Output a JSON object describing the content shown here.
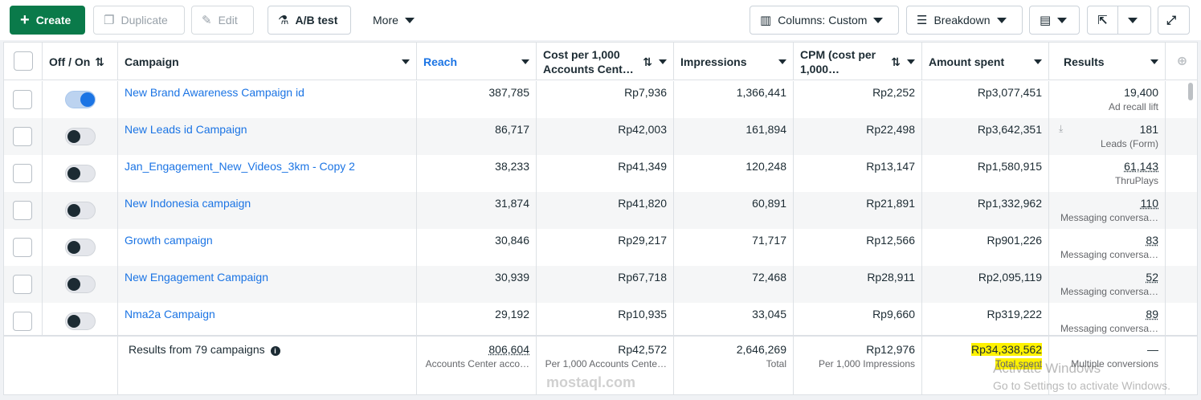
{
  "toolbar": {
    "create": "Create",
    "duplicate": "Duplicate",
    "edit": "Edit",
    "ab_test": "A/B test",
    "more": "More",
    "columns": "Columns: Custom",
    "breakdown": "Breakdown"
  },
  "headers": {
    "off_on": "Off / On",
    "campaign": "Campaign",
    "reach": "Reach",
    "cost_per_1000": "Cost per 1,000 Accounts Cent…",
    "impressions": "Impressions",
    "cpm": "CPM (cost per 1,000…",
    "amount_spent": "Amount spent",
    "results": "Results"
  },
  "rows": [
    {
      "name": "New Brand Awareness Campaign id",
      "reach": "387,785",
      "cost": "Rp7,936",
      "impressions": "1,366,441",
      "cpm": "Rp2,252",
      "spent": "Rp3,077,451",
      "result": "19,400",
      "result_type": "Ad recall lift",
      "on": true
    },
    {
      "name": "New Leads id Campaign",
      "reach": "86,717",
      "cost": "Rp42,003",
      "impressions": "161,894",
      "cpm": "Rp22,498",
      "spent": "Rp3,642,351",
      "result": "181",
      "result_type": "Leads (Form)",
      "on": false
    },
    {
      "name": "Jan_Engagement_New_Videos_3km - Copy 2",
      "reach": "38,233",
      "cost": "Rp41,349",
      "impressions": "120,248",
      "cpm": "Rp13,147",
      "spent": "Rp1,580,915",
      "result": "61,143",
      "result_type": "ThruPlays",
      "on": false
    },
    {
      "name": "New Indonesia campaign",
      "reach": "31,874",
      "cost": "Rp41,820",
      "impressions": "60,891",
      "cpm": "Rp21,891",
      "spent": "Rp1,332,962",
      "result": "110",
      "result_type": "Messaging conversa…",
      "on": false
    },
    {
      "name": "Growth campaign",
      "reach": "30,846",
      "cost": "Rp29,217",
      "impressions": "71,717",
      "cpm": "Rp12,566",
      "spent": "Rp901,226",
      "result": "83",
      "result_type": "Messaging conversa…",
      "on": false
    },
    {
      "name": "New Engagement Campaign",
      "reach": "30,939",
      "cost": "Rp67,718",
      "impressions": "72,468",
      "cpm": "Rp28,911",
      "spent": "Rp2,095,119",
      "result": "52",
      "result_type": "Messaging conversa…",
      "on": false
    },
    {
      "name": "Nma2a Campaign",
      "reach": "29,192",
      "cost": "Rp10,935",
      "impressions": "33,045",
      "cpm": "Rp9,660",
      "spent": "Rp319,222",
      "result": "89",
      "result_type": "Messaging conversa…",
      "on": false
    }
  ],
  "footer": {
    "label": "Results from 79 campaigns",
    "reach": "806,604",
    "reach_sub": "Accounts Center acco…",
    "cost": "Rp42,572",
    "cost_sub": "Per 1,000 Accounts Cente…",
    "impressions": "2,646,269",
    "impressions_sub": "Total",
    "cpm": "Rp12,976",
    "cpm_sub": "Per 1,000 Impressions",
    "spent": "Rp34,338,562",
    "spent_sub": "Total spent",
    "results": "—",
    "results_sub": "Multiple conversions"
  },
  "watermark": {
    "activate": "Activate Windows",
    "settings": "Go to Settings to activate Windows.",
    "site": "mostaql.com"
  },
  "colors": {
    "accent": "#1b74e4",
    "create": "#0a7a4a",
    "highlight": "#fff200"
  }
}
